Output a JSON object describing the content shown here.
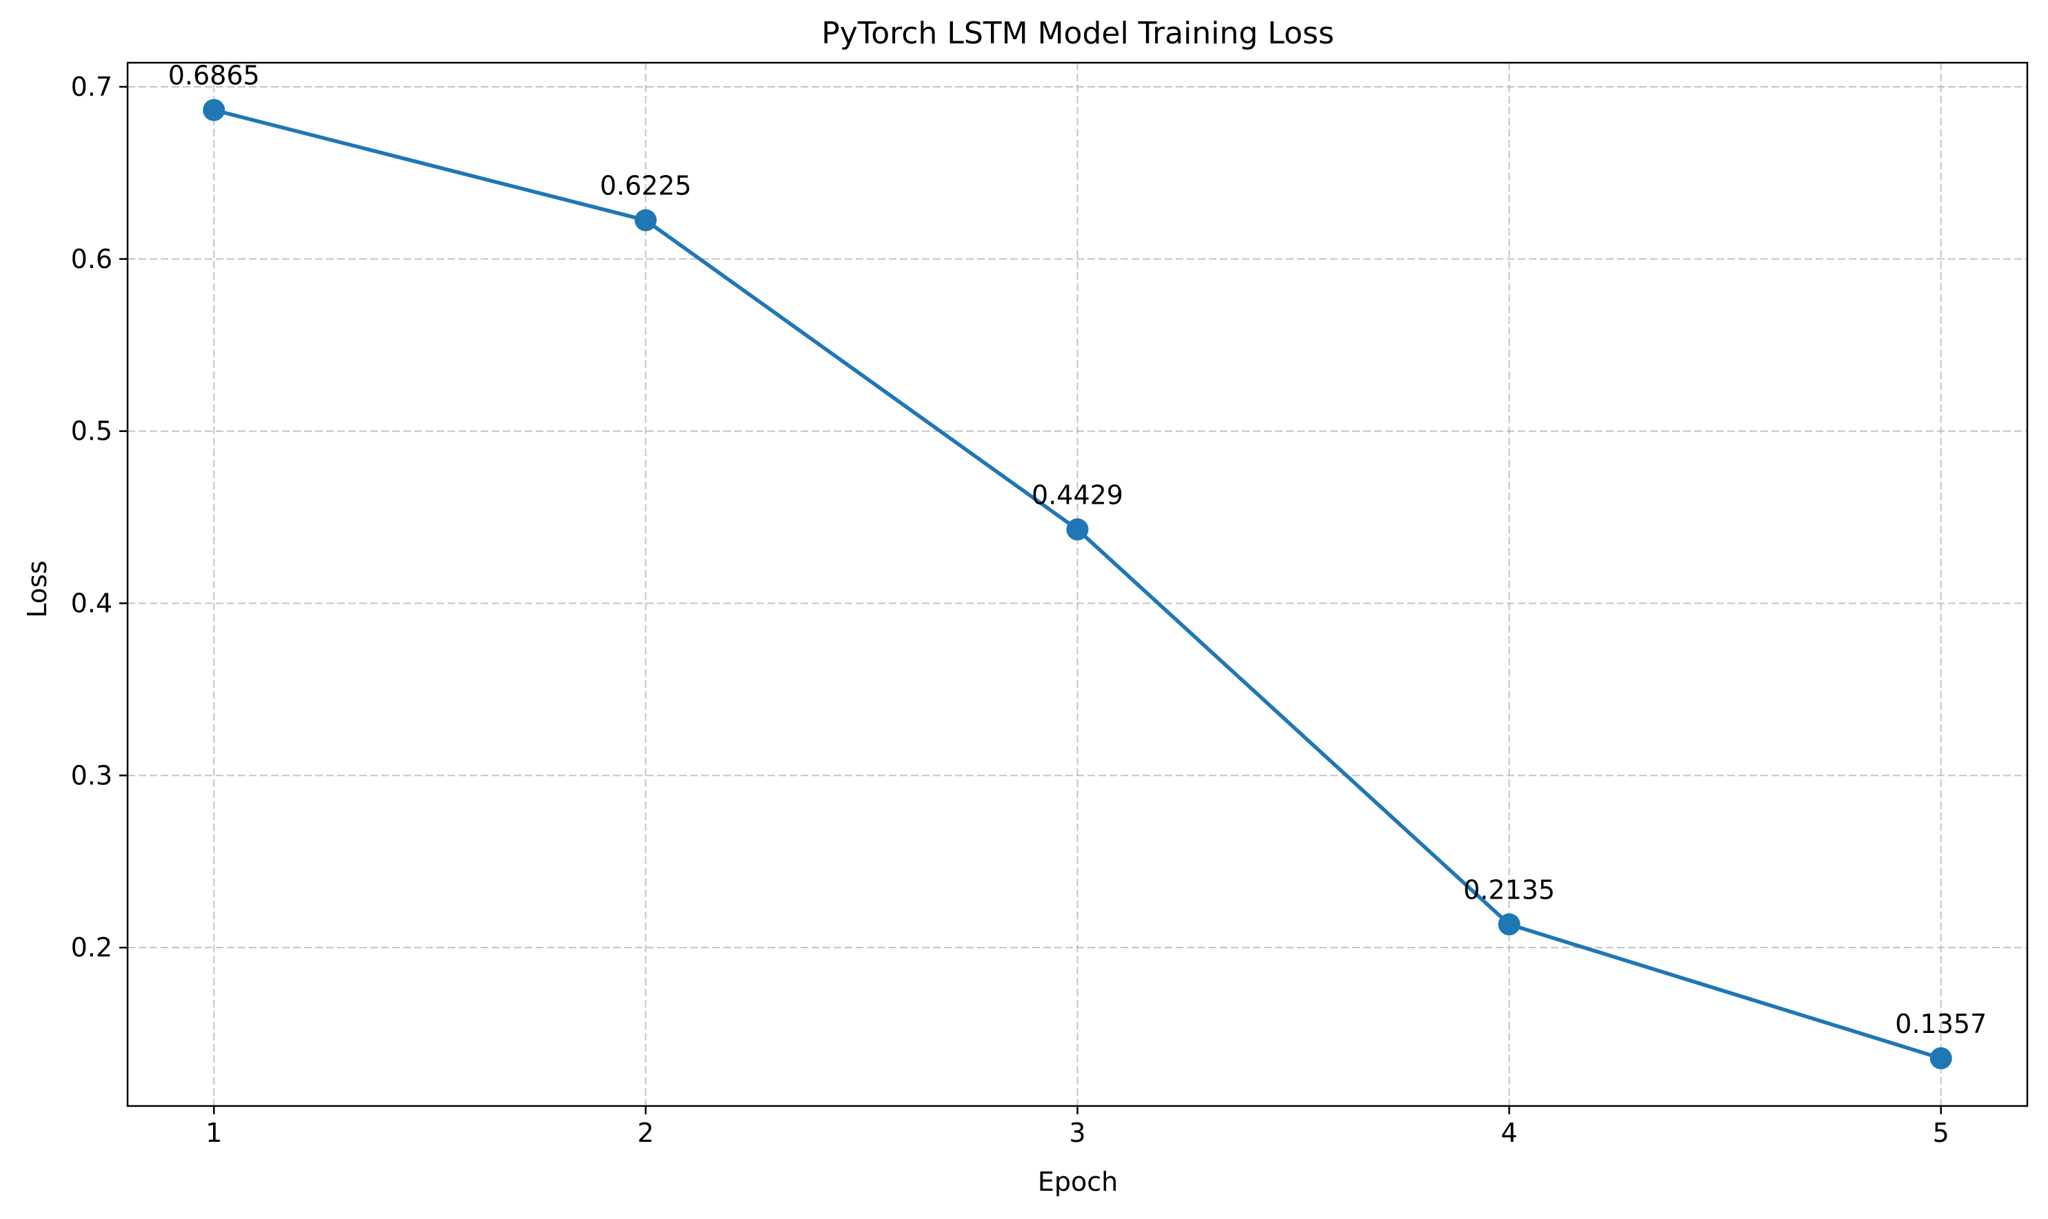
{
  "chart_data": {
    "type": "line",
    "title": "PyTorch LSTM Model Training Loss",
    "xlabel": "Epoch",
    "ylabel": "Loss",
    "x": [
      1,
      2,
      3,
      4,
      5
    ],
    "series": [
      {
        "values": [
          0.6865,
          0.6225,
          0.4429,
          0.2135,
          0.1357
        ],
        "labels": [
          "0.6865",
          "0.6225",
          "0.4429",
          "0.2135",
          "0.1357"
        ],
        "color": "#1f77b4",
        "marker": "circle"
      }
    ],
    "xticks": [
      {
        "value": 1,
        "label": "1"
      },
      {
        "value": 2,
        "label": "2"
      },
      {
        "value": 3,
        "label": "3"
      },
      {
        "value": 4,
        "label": "4"
      },
      {
        "value": 5,
        "label": "5"
      }
    ],
    "yticks": [
      {
        "value": 0.2,
        "label": "0.2"
      },
      {
        "value": 0.3,
        "label": "0.3"
      },
      {
        "value": 0.4,
        "label": "0.4"
      },
      {
        "value": 0.5,
        "label": "0.5"
      },
      {
        "value": 0.6,
        "label": "0.6"
      },
      {
        "value": 0.7,
        "label": "0.7"
      }
    ],
    "xlim": [
      0.8,
      5.2
    ],
    "ylim": [
      0.108,
      0.714
    ],
    "grid": true,
    "grid_color": "#b0b0b0",
    "axis_color": "#000000"
  }
}
